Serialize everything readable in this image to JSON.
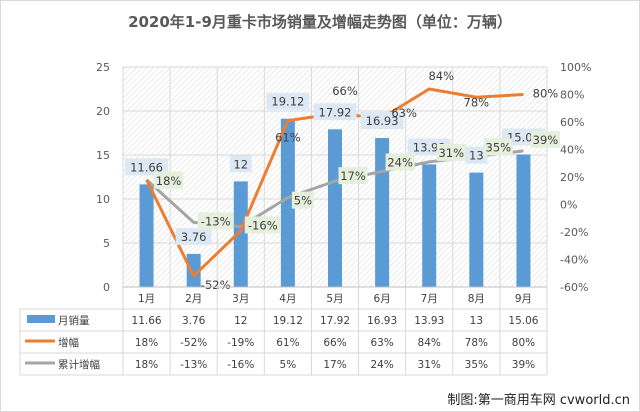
{
  "chart_data": {
    "type": "bar+line",
    "title": "2020年1-9月重卡市场销量及增幅走势图（单位：万辆）",
    "categories": [
      "1月",
      "2月",
      "3月",
      "4月",
      "5月",
      "6月",
      "7月",
      "8月",
      "9月"
    ],
    "series": [
      {
        "name": "月销量",
        "type": "bar",
        "axis": "left",
        "color": "#5B9BD5",
        "values": [
          11.66,
          3.76,
          12,
          19.12,
          17.92,
          16.93,
          13.93,
          13,
          15.06
        ],
        "labels": [
          "11.66",
          "3.76",
          "12",
          "19.12",
          "17.92",
          "16.93",
          "13.93",
          "13",
          "15.06"
        ]
      },
      {
        "name": "增幅",
        "type": "line",
        "axis": "right",
        "color": "#ED7D31",
        "values": [
          18,
          -52,
          -19,
          61,
          66,
          63,
          84,
          78,
          80
        ],
        "labels": [
          "18%",
          "-52%",
          "-19%",
          "61%",
          "66%",
          "63%",
          "84%",
          "78%",
          "80%"
        ]
      },
      {
        "name": "累计增幅",
        "type": "line",
        "axis": "right",
        "color": "#A5A5A5",
        "values": [
          18,
          -13,
          -16,
          5,
          17,
          24,
          31,
          35,
          39
        ],
        "labels": [
          "18%",
          "-13%",
          "-16%",
          "5%",
          "17%",
          "24%",
          "31%",
          "35%",
          "39%"
        ]
      }
    ],
    "left_axis": {
      "ylim": [
        0,
        25
      ],
      "ticks": [
        "0",
        "5",
        "10",
        "15",
        "20",
        "25"
      ]
    },
    "right_axis": {
      "ylim": [
        -60,
        100
      ],
      "ticks": [
        "-60%",
        "-40%",
        "-20%",
        "0%",
        "20%",
        "40%",
        "60%",
        "80%",
        "100%"
      ]
    },
    "grid": true,
    "legend": "data-table"
  },
  "source": "制图:第一商用车网 cvworld.cn"
}
